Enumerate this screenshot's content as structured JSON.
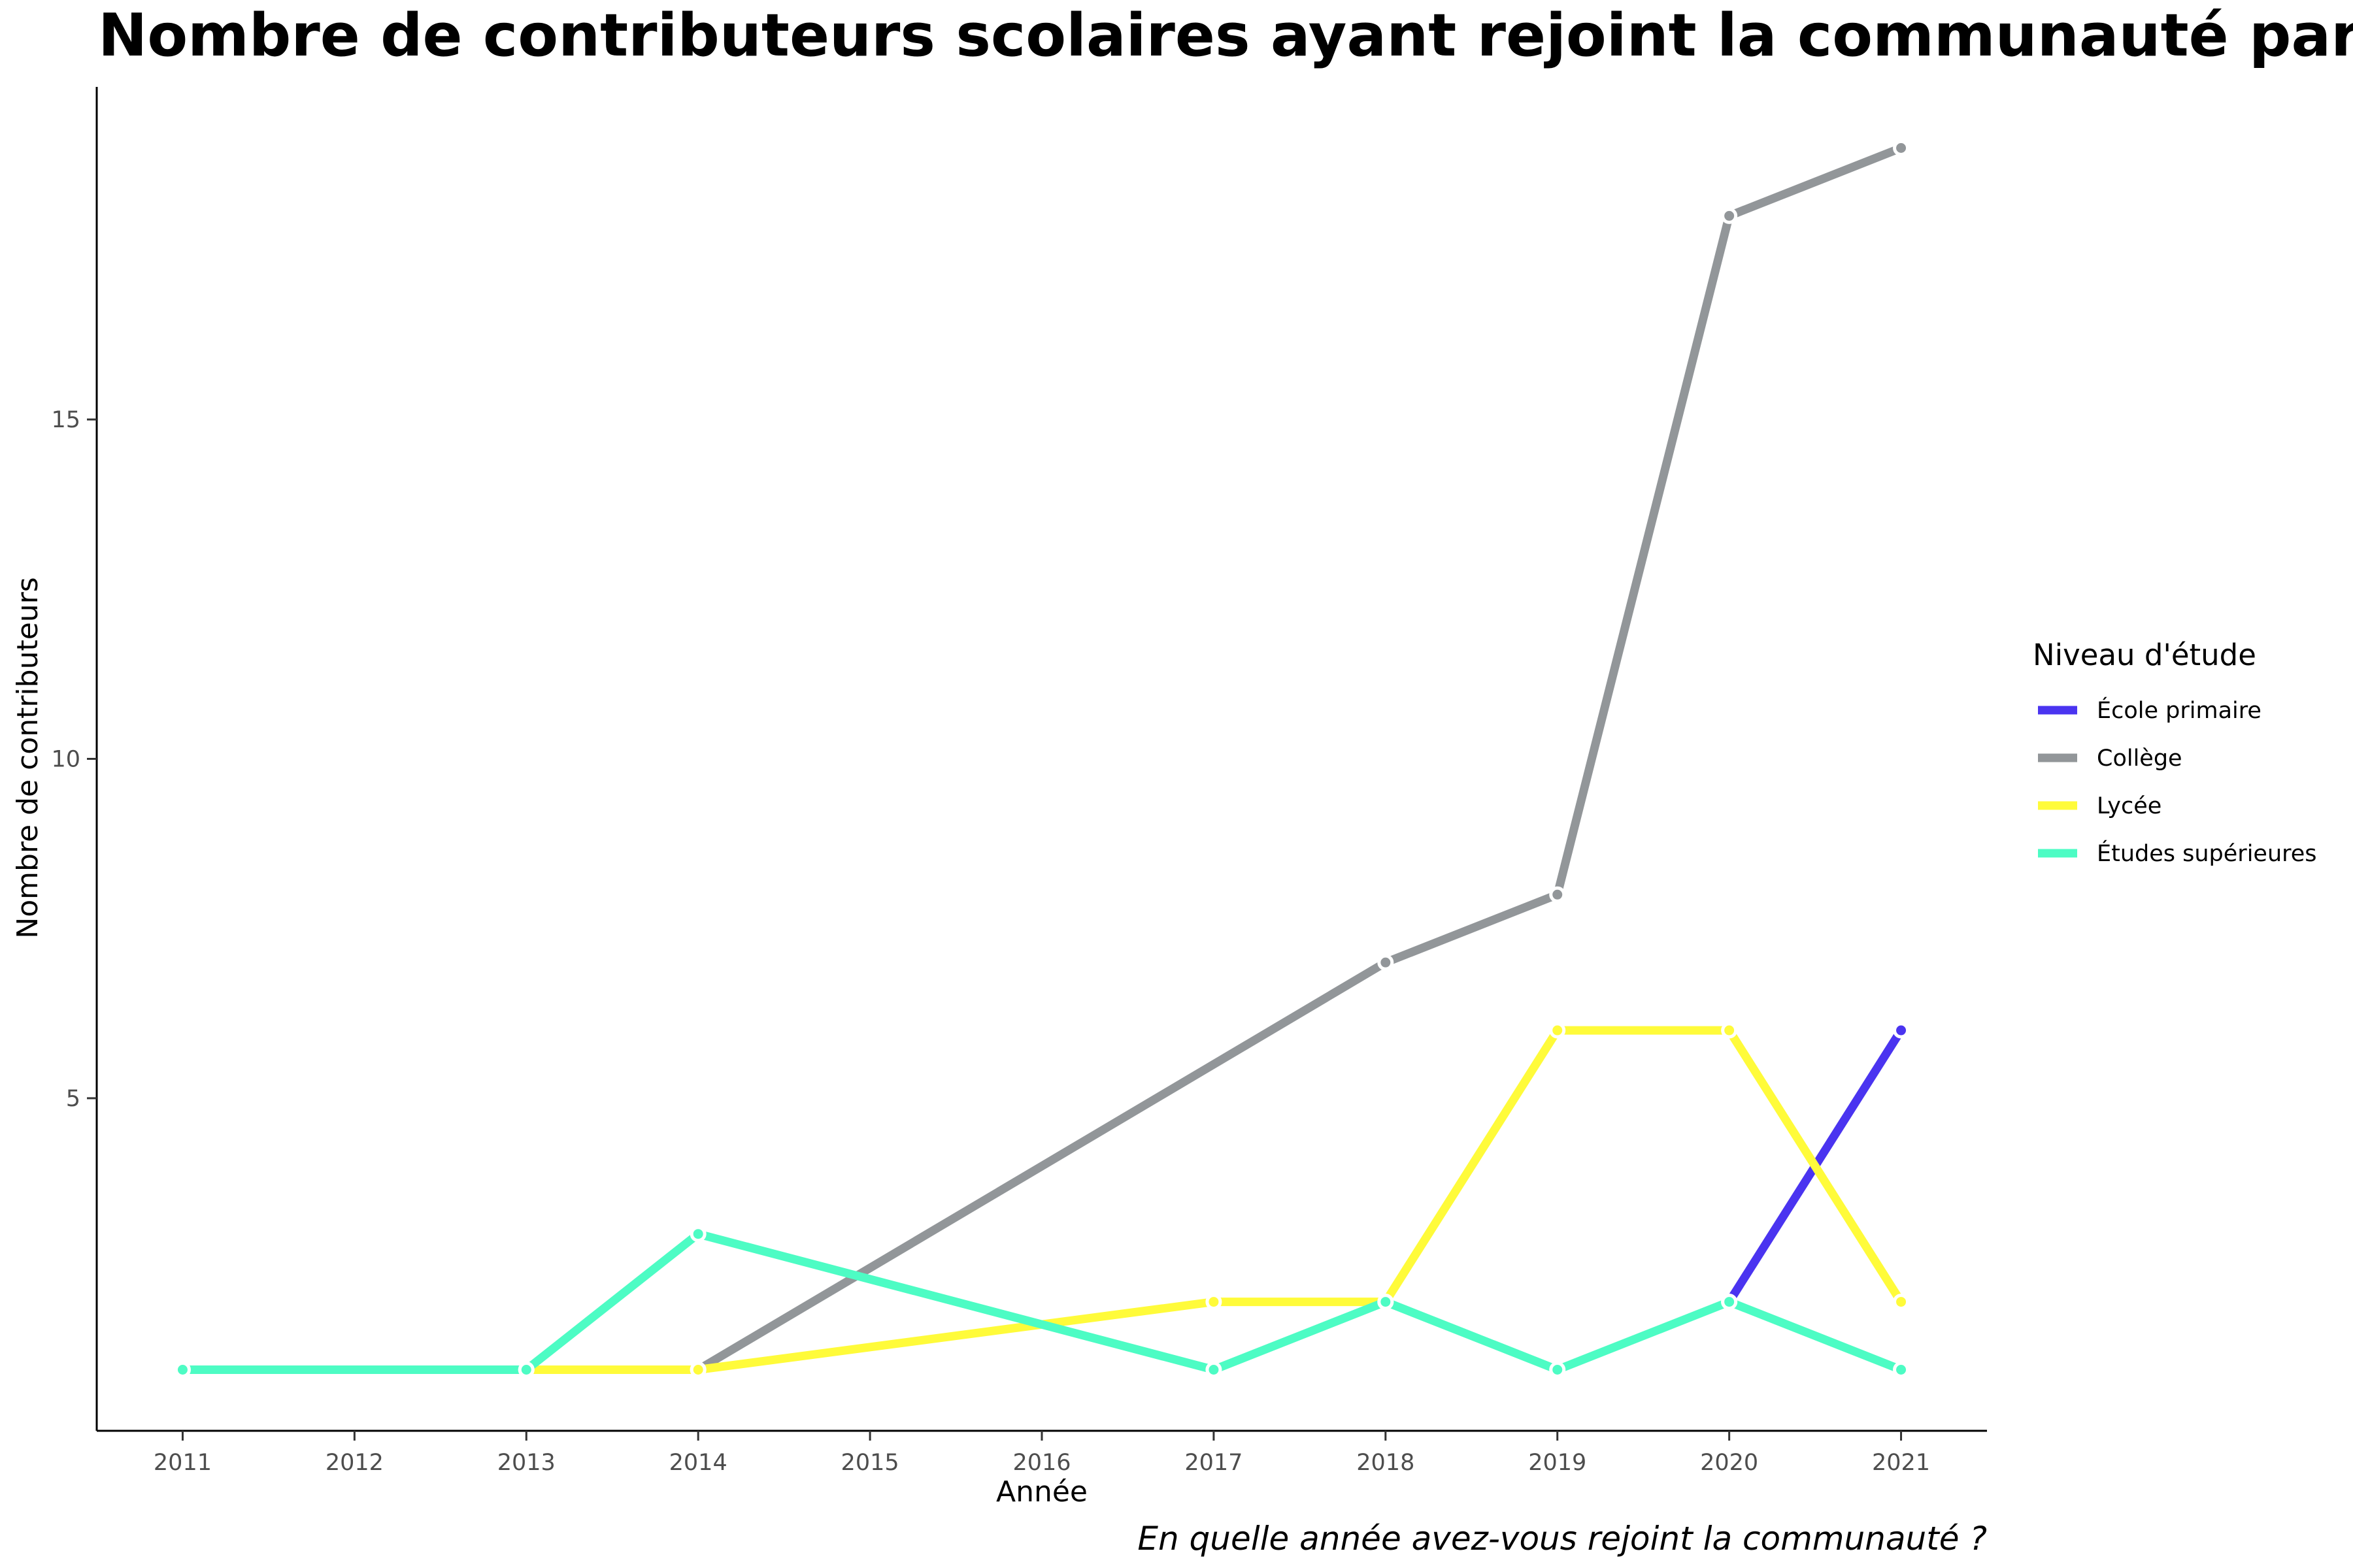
{
  "chart_data": {
    "type": "line",
    "title": "Nombre de contributeurs scolaires ayant rejoint la communauté par année",
    "xlabel": "Année",
    "ylabel": "Nombre de contributeurs",
    "caption": "En quelle année avez-vous rejoint la communauté ?",
    "x_ticks": [
      "2011",
      "2012",
      "2013",
      "2014",
      "2015",
      "2016",
      "2017",
      "2018",
      "2019",
      "2020",
      "2021"
    ],
    "y_ticks": [
      "5",
      "10",
      "15"
    ],
    "xlim": [
      2010.5,
      2021.5
    ],
    "ylim": [
      0.1,
      19.9
    ],
    "grid": false,
    "legend": {
      "title": "Niveau d'étude",
      "position": "right"
    },
    "series": [
      {
        "name": "École primaire",
        "color": "#4a34f0",
        "points": [
          [
            2020,
            2
          ],
          [
            2021,
            6
          ]
        ]
      },
      {
        "name": "Collège",
        "color": "#929699",
        "points": [
          [
            2014,
            1
          ],
          [
            2018,
            7
          ],
          [
            2019,
            8
          ],
          [
            2020,
            18
          ],
          [
            2021,
            19
          ]
        ]
      },
      {
        "name": "Lycée",
        "color": "#fffb3a",
        "points": [
          [
            2013,
            1
          ],
          [
            2014,
            1
          ],
          [
            2017,
            2
          ],
          [
            2018,
            2
          ],
          [
            2019,
            6
          ],
          [
            2020,
            6
          ],
          [
            2021,
            2
          ]
        ]
      },
      {
        "name": "Études supérieures",
        "color": "#4dfcc4",
        "points": [
          [
            2011,
            1
          ],
          [
            2013,
            1
          ],
          [
            2014,
            3
          ],
          [
            2017,
            1
          ],
          [
            2018,
            2
          ],
          [
            2019,
            1
          ],
          [
            2020,
            2
          ],
          [
            2021,
            1
          ]
        ]
      }
    ]
  }
}
